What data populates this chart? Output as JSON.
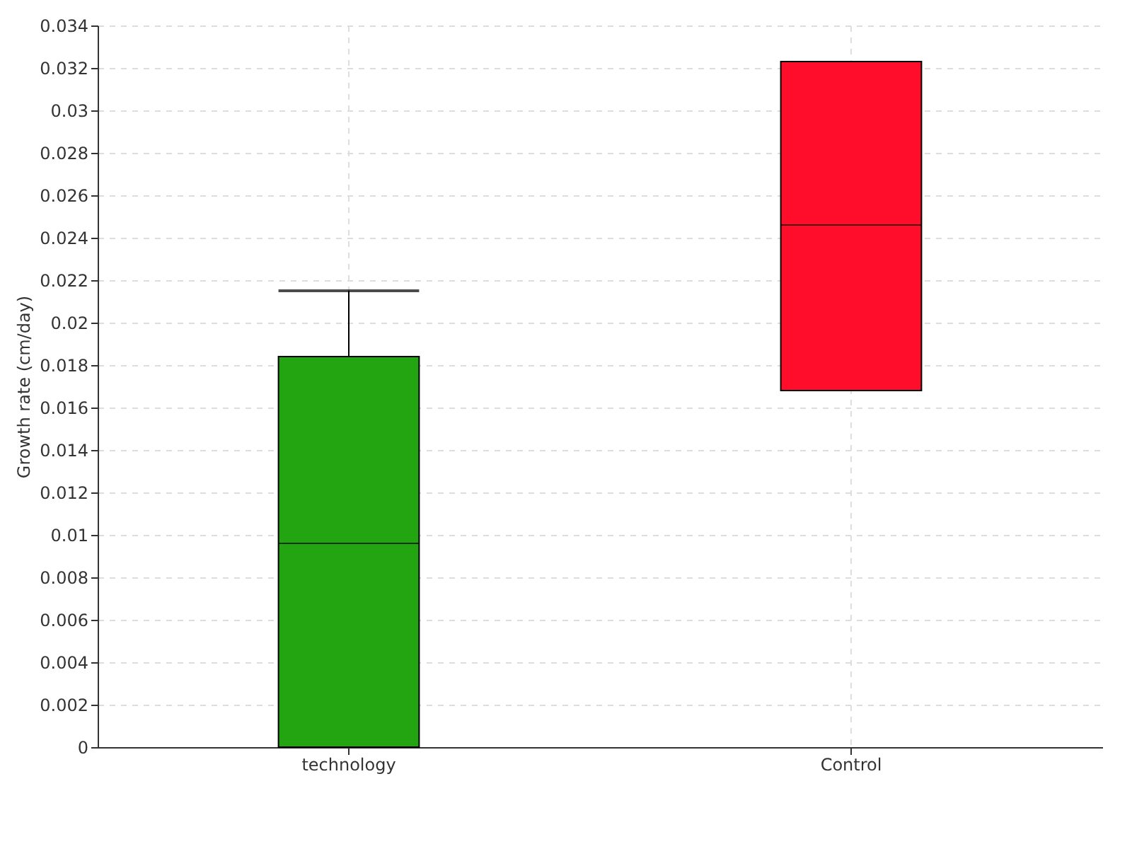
{
  "chart_data": {
    "type": "box",
    "ylabel": "Growth rate (cm/day)",
    "categories": [
      "technology",
      "Control"
    ],
    "colors": [
      "#22a511",
      "#ff0d2a"
    ],
    "boxes": [
      {
        "low": 0,
        "q1": 0,
        "median": 0.0096,
        "q3": 0.0184,
        "high": 0.0215
      },
      {
        "low": 0.0168,
        "q1": 0.0168,
        "median": 0.0246,
        "q3": 0.0323,
        "high": 0.0323
      }
    ],
    "ylim": [
      0,
      0.034
    ],
    "yticks": [
      0,
      0.002,
      0.004,
      0.006,
      0.008,
      0.01,
      0.012,
      0.014,
      0.016,
      0.018,
      0.02,
      0.022,
      0.024,
      0.026,
      0.028,
      0.03,
      0.032,
      0.034
    ],
    "grid": true
  }
}
